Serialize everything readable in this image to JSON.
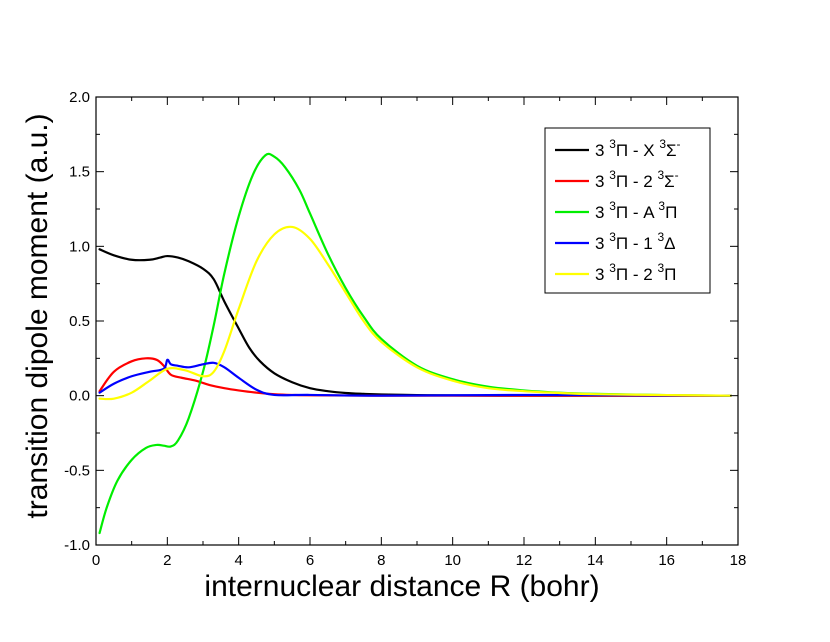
{
  "chart_data": {
    "type": "line",
    "title": "",
    "xlabel": "internuclear distance R (bohr)",
    "ylabel": "transition dipole moment (a.u.)",
    "xlim": [
      0,
      18
    ],
    "ylim": [
      -1.0,
      2.0
    ],
    "xticks": [
      0,
      2,
      4,
      6,
      8,
      10,
      12,
      14,
      16,
      18
    ],
    "xtick_labels": [
      "0",
      "2",
      "4",
      "6",
      "8",
      "10",
      "12",
      "14",
      "16",
      "18"
    ],
    "yticks": [
      -1.0,
      -0.5,
      0.0,
      0.5,
      1.0,
      1.5,
      2.0
    ],
    "ytick_labels": [
      "-1.0",
      "-0.5",
      "0.0",
      "0.5",
      "1.0",
      "1.5",
      "2.0"
    ],
    "legend_position": "top-right",
    "series": [
      {
        "name": "3 3Π - X 3Σ-",
        "label_parts": [
          "3",
          "3",
          "Π - X",
          "3",
          "Σ",
          "-"
        ],
        "color": "#000000",
        "x": [
          0.1,
          0.5,
          1.0,
          1.5,
          1.8,
          2.0,
          2.3,
          2.6,
          3.0,
          3.3,
          3.6,
          4.0,
          4.3,
          4.6,
          5.0,
          5.5,
          6.0,
          6.5,
          7.0,
          7.5,
          8.0,
          9.0,
          10.0,
          12.0,
          14.0,
          17.8
        ],
        "y": [
          0.98,
          0.94,
          0.91,
          0.91,
          0.925,
          0.935,
          0.925,
          0.9,
          0.85,
          0.78,
          0.63,
          0.45,
          0.32,
          0.23,
          0.15,
          0.09,
          0.05,
          0.03,
          0.018,
          0.012,
          0.008,
          0.004,
          0.002,
          0.0,
          0.0,
          0.0
        ]
      },
      {
        "name": "3 3Π - 2 3Σ-",
        "label_parts": [
          "3",
          "3",
          "Π - 2",
          "3",
          "Σ",
          "-"
        ],
        "color": "#ff0000",
        "x": [
          0.1,
          0.5,
          1.0,
          1.4,
          1.7,
          1.9,
          2.1,
          2.4,
          2.8,
          3.2,
          3.6,
          4.0,
          4.5,
          5.0,
          5.5,
          6.0,
          8.0,
          10.0,
          14.0,
          17.8
        ],
        "y": [
          0.03,
          0.16,
          0.23,
          0.25,
          0.24,
          0.2,
          0.14,
          0.12,
          0.1,
          0.07,
          0.05,
          0.035,
          0.02,
          0.01,
          0.005,
          0.003,
          0.0,
          0.0,
          0.0,
          0.0
        ]
      },
      {
        "name": "3 3Π - A 3Π",
        "label_parts": [
          "3",
          "3",
          "Π - A",
          "3",
          "Π",
          ""
        ],
        "color": "#00ee00",
        "x": [
          0.1,
          0.3,
          0.6,
          1.0,
          1.4,
          1.7,
          1.9,
          2.1,
          2.3,
          2.6,
          3.0,
          3.3,
          3.6,
          4.0,
          4.4,
          4.75,
          5.0,
          5.3,
          5.7,
          6.0,
          6.5,
          7.0,
          7.5,
          8.0,
          9.0,
          10.0,
          11.0,
          12.0,
          13.0,
          14.0,
          16.0,
          17.8
        ],
        "y": [
          -0.92,
          -0.75,
          -0.57,
          -0.43,
          -0.35,
          -0.33,
          -0.335,
          -0.34,
          -0.3,
          -0.15,
          0.16,
          0.47,
          0.82,
          1.2,
          1.48,
          1.61,
          1.6,
          1.53,
          1.38,
          1.22,
          0.95,
          0.72,
          0.53,
          0.38,
          0.2,
          0.11,
          0.06,
          0.035,
          0.02,
          0.012,
          0.004,
          0.0
        ]
      },
      {
        "name": "3 3Π - 1 3Δ",
        "label_parts": [
          "3",
          "3",
          "Π - 1",
          "3",
          "Δ",
          ""
        ],
        "color": "#0000ff",
        "x": [
          0.1,
          0.5,
          1.0,
          1.5,
          1.9,
          2.0,
          2.1,
          2.3,
          2.6,
          3.0,
          3.3,
          3.6,
          4.0,
          4.5,
          5.0,
          6.0,
          8.0,
          12.0,
          17.8
        ],
        "y": [
          0.02,
          0.08,
          0.13,
          0.16,
          0.18,
          0.24,
          0.21,
          0.2,
          0.19,
          0.21,
          0.22,
          0.19,
          0.12,
          0.04,
          0.005,
          0.005,
          0.0,
          0.005,
          0.0
        ]
      },
      {
        "name": "3 3Π - 2 3Π",
        "label_parts": [
          "3",
          "3",
          "Π - 2",
          "3",
          "Π",
          ""
        ],
        "color": "#ffff00",
        "x": [
          0.1,
          0.5,
          1.0,
          1.5,
          2.0,
          2.5,
          3.0,
          3.3,
          3.6,
          4.0,
          4.5,
          5.0,
          5.5,
          6.0,
          6.5,
          7.0,
          7.5,
          8.0,
          9.0,
          10.0,
          11.0,
          12.0,
          13.0,
          14.0,
          16.0,
          17.8
        ],
        "y": [
          -0.02,
          -0.02,
          0.02,
          0.1,
          0.18,
          0.17,
          0.13,
          0.16,
          0.3,
          0.58,
          0.9,
          1.08,
          1.13,
          1.05,
          0.88,
          0.69,
          0.5,
          0.36,
          0.19,
          0.1,
          0.05,
          0.03,
          0.018,
          0.01,
          0.004,
          0.0
        ]
      }
    ]
  }
}
